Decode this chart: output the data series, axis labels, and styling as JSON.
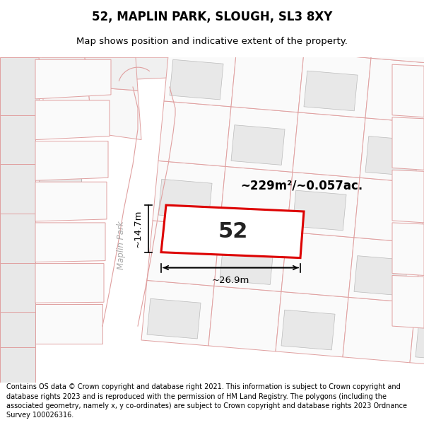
{
  "title": "52, MAPLIN PARK, SLOUGH, SL3 8XY",
  "subtitle": "Map shows position and indicative extent of the property.",
  "area_text": "~229m²/~0.057ac.",
  "plot_number": "52",
  "dim_width": "~26.9m",
  "dim_height": "~14.7m",
  "road_label": "Maplin Park",
  "footer_text": "Contains OS data © Crown copyright and database right 2021. This information is subject to Crown copyright and database rights 2023 and is reproduced with the permission of HM Land Registry. The polygons (including the associated geometry, namely x, y co-ordinates) are subject to Crown copyright and database rights 2023 Ordnance Survey 100026316.",
  "bg_color": "#ffffff",
  "map_bg_color": "#ffffff",
  "plot_fill": "#ffffff",
  "plot_edge_color": "#dd0000",
  "building_fill": "#e8e8e8",
  "building_edge": "#e0a0a0",
  "plot_outline_color": "#e0a0a0",
  "footer_bg": "#ffffff",
  "title_color": "#000000",
  "footer_color": "#000000",
  "road_text_color": "#aaaaaa",
  "dim_color": "#000000"
}
